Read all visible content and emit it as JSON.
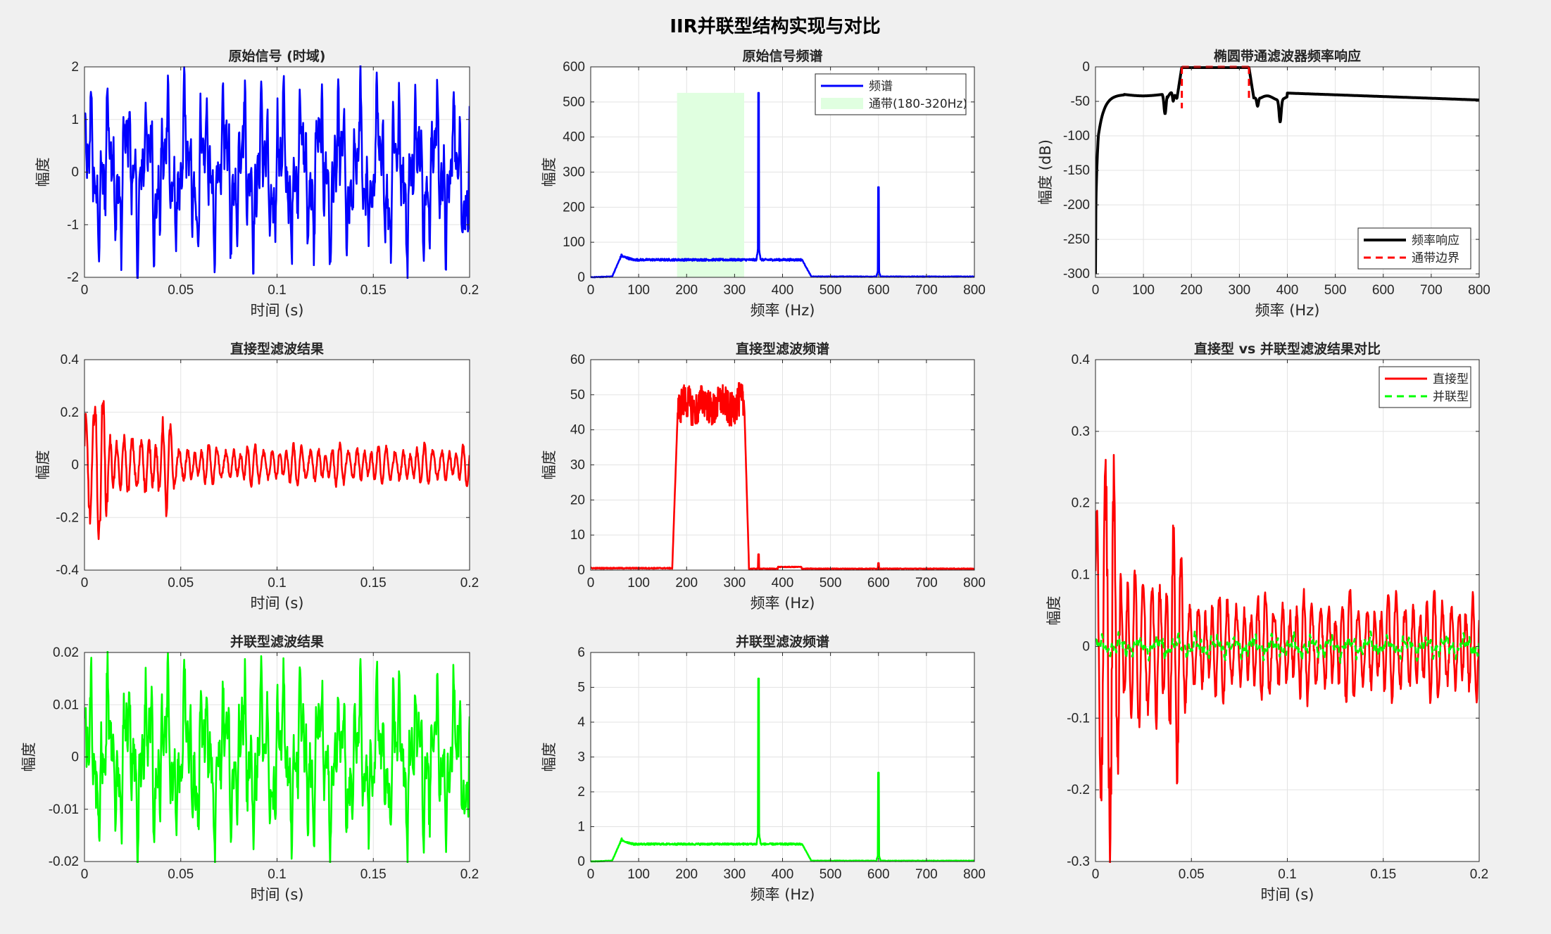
{
  "figure": {
    "title": "IIR并联型结构实现与对比",
    "background": "#f0f0f0"
  },
  "chart_data": [
    {
      "id": "ax1",
      "type": "line",
      "title": "原始信号 (时域)",
      "xlabel": "时间 (s)",
      "ylabel": "幅度",
      "xlim": [
        0,
        0.2
      ],
      "ylim": [
        -2,
        2
      ],
      "xticks": [
        0,
        0.05,
        0.1,
        0.15,
        0.2
      ],
      "xticklabels": [
        "0",
        "0.05",
        "0.1",
        "0.15",
        "0.2"
      ],
      "yticks": [
        -2,
        -1,
        0,
        1,
        2
      ],
      "yticklabels": [
        "-2",
        "-1",
        "0",
        "1",
        "2"
      ],
      "grid": true,
      "series": [
        {
          "kind": "signal",
          "amp": 1.0,
          "noise": 0.28,
          "color": "#0000ff"
        }
      ]
    },
    {
      "id": "ax2",
      "type": "line",
      "title": "原始信号频谱",
      "xlabel": "频率 (Hz)",
      "ylabel": "幅度",
      "xlim": [
        0,
        800
      ],
      "ylim": [
        0,
        600
      ],
      "xticks": [
        0,
        100,
        200,
        300,
        400,
        500,
        600,
        700,
        800
      ],
      "xticklabels": [
        "0",
        "100",
        "200",
        "300",
        "400",
        "500",
        "600",
        "700",
        "800"
      ],
      "yticks": [
        0,
        100,
        200,
        300,
        400,
        500,
        600
      ],
      "yticklabels": [
        "0",
        "100",
        "200",
        "300",
        "400",
        "500",
        "600"
      ],
      "grid": true,
      "legend": {
        "position": "top-right",
        "entries": [
          "频谱",
          "通带(180-320Hz)"
        ]
      },
      "shade": {
        "x0": 180,
        "x1": 320,
        "ytop": 526,
        "color": "#e0ffe0"
      },
      "series": [
        {
          "name": "频谱",
          "kind": "spectrum",
          "lo": 60,
          "hi": 440,
          "level": 50,
          "nvar": 6,
          "peaks": [
            [
              350,
              526
            ],
            [
              600,
              257
            ]
          ],
          "color": "#0000ff"
        }
      ]
    },
    {
      "id": "ax3",
      "type": "line",
      "title": "椭圆带通滤波器频率响应",
      "xlabel": "频率 (Hz)",
      "ylabel": "幅度 (dB)",
      "xlim": [
        0,
        800
      ],
      "ylim": [
        -305,
        0
      ],
      "xticks": [
        0,
        100,
        200,
        300,
        400,
        500,
        600,
        700,
        800
      ],
      "xticklabels": [
        "0",
        "100",
        "200",
        "300",
        "400",
        "500",
        "600",
        "700",
        "800"
      ],
      "yticks": [
        -300,
        -250,
        -200,
        -150,
        -100,
        -50,
        0
      ],
      "yticklabels": [
        "-300",
        "-250",
        "-200",
        "-150",
        "-100",
        "-50",
        "0"
      ],
      "grid": true,
      "legend": {
        "position": "bottom-right",
        "entries": [
          "频率响应",
          "通带边界"
        ]
      },
      "series": [
        {
          "name": "频率响应",
          "kind": "response",
          "color": "#000000"
        },
        {
          "name": "通带边界",
          "kind": "edges",
          "x": [
            180,
            320
          ],
          "y": [
            -60,
            -50
          ],
          "color": "#ff0000"
        }
      ]
    },
    {
      "id": "ax4",
      "type": "line",
      "title": "直接型滤波结果",
      "xlabel": "时间 (s)",
      "ylabel": "幅度",
      "xlim": [
        0,
        0.2
      ],
      "ylim": [
        -0.4,
        0.4
      ],
      "xticks": [
        0,
        0.05,
        0.1,
        0.15,
        0.2
      ],
      "xticklabels": [
        "0",
        "0.05",
        "0.1",
        "0.15",
        "0.2"
      ],
      "yticks": [
        -0.4,
        -0.2,
        0,
        0.2,
        0.4
      ],
      "yticklabels": [
        "-0.4",
        "-0.2",
        "0",
        "0.2",
        "0.4"
      ],
      "grid": true,
      "series": [
        {
          "kind": "filtered",
          "amp": 0.045,
          "color": "#ff0000"
        }
      ]
    },
    {
      "id": "ax5",
      "type": "line",
      "title": "直接型滤波频谱",
      "xlabel": "频率 (Hz)",
      "ylabel": "幅度",
      "xlim": [
        0,
        800
      ],
      "ylim": [
        0,
        60
      ],
      "xticks": [
        0,
        100,
        200,
        300,
        400,
        500,
        600,
        700,
        800
      ],
      "xticklabels": [
        "0",
        "100",
        "200",
        "300",
        "400",
        "500",
        "600",
        "700",
        "800"
      ],
      "yticks": [
        0,
        10,
        20,
        30,
        40,
        50,
        60
      ],
      "yticklabels": [
        "0",
        "10",
        "20",
        "30",
        "40",
        "50",
        "60"
      ],
      "grid": true,
      "series": [
        {
          "kind": "bandspec",
          "lo": 180,
          "hi": 320,
          "level": 47,
          "nvar": 5,
          "peaks": [
            [
              350,
              4.5
            ],
            [
              600,
              2
            ]
          ],
          "color": "#ff0000"
        }
      ]
    },
    {
      "id": "ax6",
      "type": "line",
      "title": "直接型 vs 并联型滤波结果对比",
      "xlabel": "时间 (s)",
      "ylabel": "幅度",
      "xlim": [
        0,
        0.2
      ],
      "ylim": [
        -0.3,
        0.4
      ],
      "xticks": [
        0,
        0.05,
        0.1,
        0.15,
        0.2
      ],
      "xticklabels": [
        "0",
        "0.05",
        "0.1",
        "0.15",
        "0.2"
      ],
      "yticks": [
        -0.3,
        -0.2,
        -0.1,
        0,
        0.1,
        0.2,
        0.3,
        0.4
      ],
      "yticklabels": [
        "-0.3",
        "-0.2",
        "-0.1",
        "0",
        "0.1",
        "0.2",
        "0.3",
        "0.4"
      ],
      "grid": true,
      "legend": {
        "position": "top-right",
        "entries": [
          "直接型",
          "并联型"
        ]
      },
      "series": [
        {
          "name": "直接型",
          "kind": "filtered",
          "amp": 0.045,
          "color": "#ff0000"
        },
        {
          "name": "并联型",
          "kind": "signal",
          "amp": 0.01,
          "noise": 0.28,
          "color": "#00ff00",
          "dash": true
        }
      ]
    },
    {
      "id": "ax7",
      "type": "line",
      "title": "并联型滤波结果",
      "xlabel": "时间 (s)",
      "ylabel": "幅度",
      "xlim": [
        0,
        0.2
      ],
      "ylim": [
        -0.02,
        0.02
      ],
      "xticks": [
        0,
        0.05,
        0.1,
        0.15,
        0.2
      ],
      "xticklabels": [
        "0",
        "0.05",
        "0.1",
        "0.15",
        "0.2"
      ],
      "yticks": [
        -0.02,
        -0.01,
        0,
        0.01,
        0.02
      ],
      "yticklabels": [
        "-0.02",
        "-0.01",
        "0",
        "0.01",
        "0.02"
      ],
      "grid": true,
      "series": [
        {
          "kind": "signal",
          "amp": 0.01,
          "noise": 0.28,
          "color": "#00ff00"
        }
      ]
    },
    {
      "id": "ax8",
      "type": "line",
      "title": "并联型滤波频谱",
      "xlabel": "频率 (Hz)",
      "ylabel": "幅度",
      "xlim": [
        0,
        800
      ],
      "ylim": [
        0,
        6
      ],
      "xticks": [
        0,
        100,
        200,
        300,
        400,
        500,
        600,
        700,
        800
      ],
      "xticklabels": [
        "0",
        "100",
        "200",
        "300",
        "400",
        "500",
        "600",
        "700",
        "800"
      ],
      "yticks": [
        0,
        1,
        2,
        3,
        4,
        5,
        6
      ],
      "yticklabels": [
        "0",
        "1",
        "2",
        "3",
        "4",
        "5",
        "6"
      ],
      "grid": true,
      "series": [
        {
          "kind": "spectrum",
          "lo": 60,
          "hi": 440,
          "level": 0.5,
          "nvar": 0.05,
          "peaks": [
            [
              350,
              5.25
            ],
            [
              600,
              2.55
            ]
          ],
          "color": "#00ff00"
        }
      ]
    }
  ]
}
